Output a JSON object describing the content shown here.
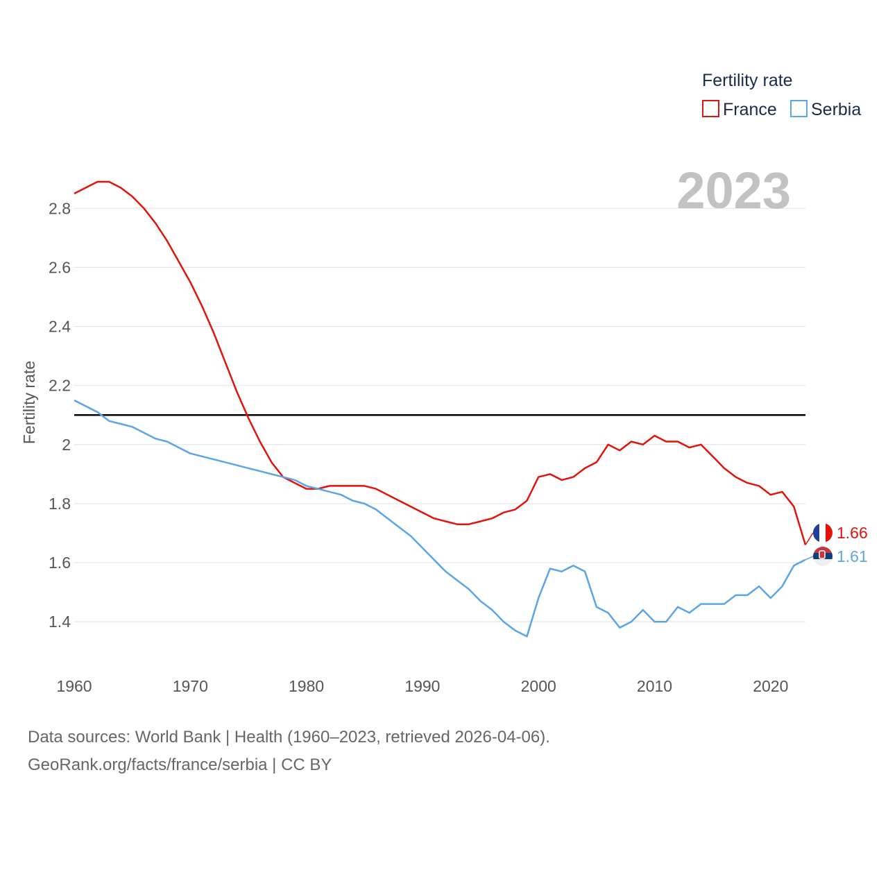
{
  "chart_data": {
    "type": "line",
    "title": "",
    "xlabel": "",
    "ylabel": "Fertility rate",
    "legend_title": "Fertility rate",
    "legend_position": "top-right",
    "year_label": "2023",
    "xlim": [
      1960,
      2023
    ],
    "ylim": [
      1.25,
      2.93
    ],
    "x_ticks": [
      1960,
      1970,
      1980,
      1990,
      2000,
      2010,
      2020
    ],
    "y_ticks": [
      {
        "value": 1.4,
        "label": "1.4"
      },
      {
        "value": 1.6,
        "label": "1.6"
      },
      {
        "value": 1.8,
        "label": "1.8"
      },
      {
        "value": 2.0,
        "label": "2"
      },
      {
        "value": 2.2,
        "label": "2.2"
      },
      {
        "value": 2.4,
        "label": "2.4"
      },
      {
        "value": 2.6,
        "label": "2.6"
      },
      {
        "value": 2.8,
        "label": "2.8"
      }
    ],
    "reference_line": {
      "value": 2.1,
      "color": "#000000"
    },
    "grid": true,
    "x": [
      1960,
      1961,
      1962,
      1963,
      1964,
      1965,
      1966,
      1967,
      1968,
      1969,
      1970,
      1971,
      1972,
      1973,
      1974,
      1975,
      1976,
      1977,
      1978,
      1979,
      1980,
      1981,
      1982,
      1983,
      1984,
      1985,
      1986,
      1987,
      1988,
      1989,
      1990,
      1991,
      1992,
      1993,
      1994,
      1995,
      1996,
      1997,
      1998,
      1999,
      2000,
      2001,
      2002,
      2003,
      2004,
      2005,
      2006,
      2007,
      2008,
      2009,
      2010,
      2011,
      2012,
      2013,
      2014,
      2015,
      2016,
      2017,
      2018,
      2019,
      2020,
      2021,
      2022,
      2023
    ],
    "series": [
      {
        "name": "France",
        "color": "#e3120b",
        "end_label": "1.66",
        "flag": "france-flag-icon",
        "values": [
          2.85,
          2.87,
          2.89,
          2.89,
          2.87,
          2.84,
          2.8,
          2.75,
          2.69,
          2.62,
          2.55,
          2.47,
          2.38,
          2.28,
          2.18,
          2.09,
          2.01,
          1.94,
          1.89,
          1.87,
          1.85,
          1.85,
          1.86,
          1.86,
          1.86,
          1.86,
          1.85,
          1.83,
          1.81,
          1.79,
          1.77,
          1.75,
          1.74,
          1.73,
          1.73,
          1.74,
          1.75,
          1.77,
          1.78,
          1.81,
          1.89,
          1.9,
          1.88,
          1.89,
          1.92,
          1.94,
          2.0,
          1.98,
          2.01,
          2.0,
          2.03,
          2.01,
          2.01,
          1.99,
          2.0,
          1.96,
          1.92,
          1.89,
          1.87,
          1.86,
          1.83,
          1.84,
          1.79,
          1.66
        ]
      },
      {
        "name": "Serbia",
        "color": "#5ba4e6",
        "end_label": "1.61",
        "flag": "serbia-flag-icon",
        "values": [
          2.15,
          2.13,
          2.11,
          2.08,
          2.07,
          2.06,
          2.04,
          2.02,
          2.01,
          1.99,
          1.97,
          1.96,
          1.95,
          1.94,
          1.93,
          1.92,
          1.91,
          1.9,
          1.89,
          1.88,
          1.86,
          1.85,
          1.84,
          1.83,
          1.81,
          1.8,
          1.78,
          1.75,
          1.72,
          1.69,
          1.65,
          1.61,
          1.57,
          1.54,
          1.51,
          1.47,
          1.44,
          1.4,
          1.37,
          1.35,
          1.48,
          1.58,
          1.57,
          1.59,
          1.57,
          1.45,
          1.43,
          1.38,
          1.4,
          1.44,
          1.4,
          1.4,
          1.45,
          1.43,
          1.46,
          1.46,
          1.46,
          1.49,
          1.49,
          1.52,
          1.48,
          1.52,
          1.59,
          1.61
        ]
      }
    ]
  },
  "source": {
    "line1": "Data sources: World Bank | Health (1960–2023, retrieved 2026-04-06).",
    "line2": "GeoRank.org/facts/france/serbia | CC BY"
  }
}
